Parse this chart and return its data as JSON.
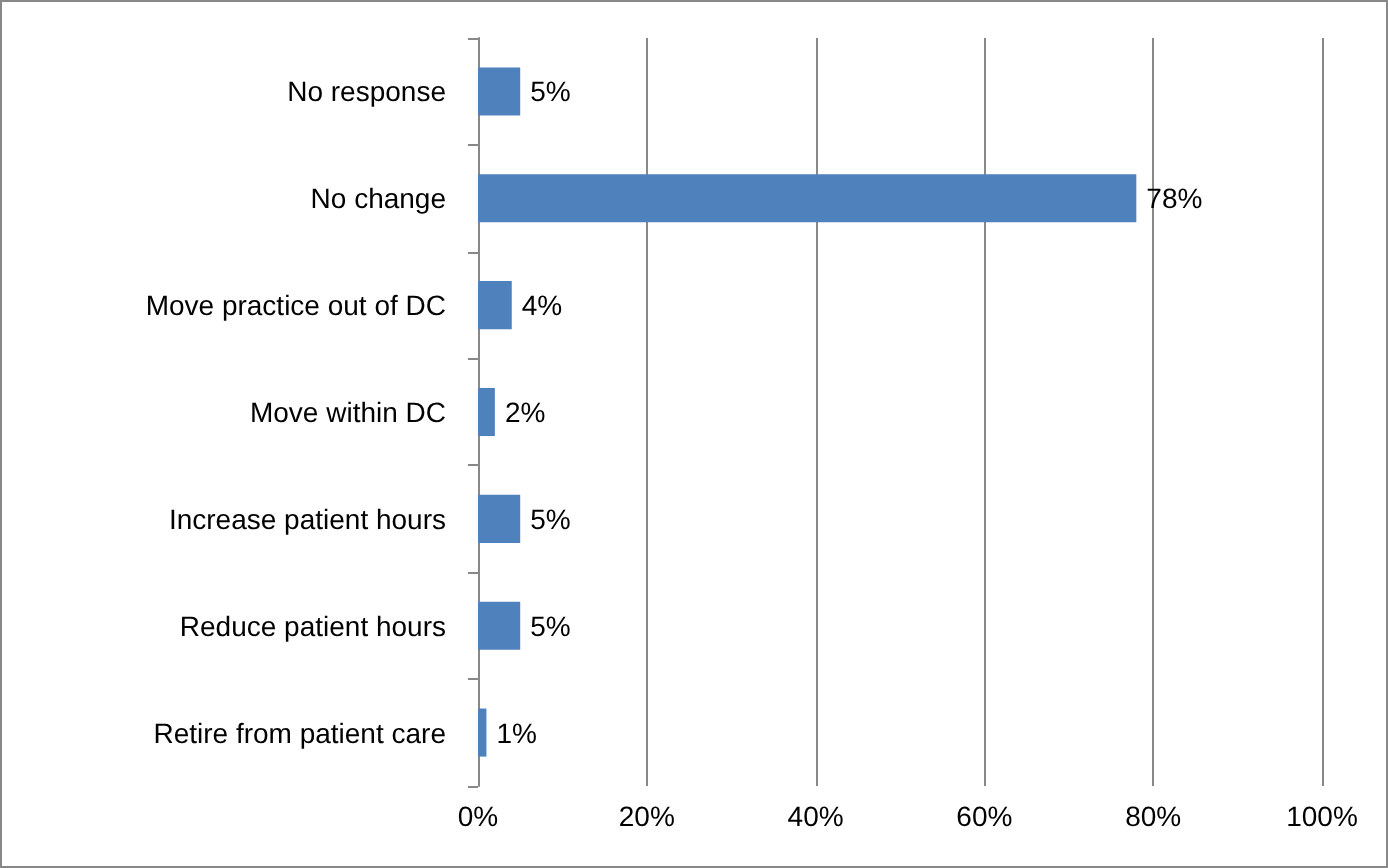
{
  "chart_data": {
    "type": "bar",
    "orientation": "horizontal",
    "categories": [
      "No response",
      "No change",
      "Move practice out of DC",
      "Move within DC",
      "Increase patient hours",
      "Reduce patient hours",
      "Retire from patient care"
    ],
    "values": [
      5,
      78,
      4,
      2,
      5,
      5,
      1
    ],
    "value_labels": [
      "5%",
      "78%",
      "4%",
      "2%",
      "5%",
      "5%",
      "1%"
    ],
    "color": "#4f81bd",
    "xlim": [
      0,
      100
    ],
    "xticks": [
      {
        "value": 0,
        "label": "0%"
      },
      {
        "value": 20,
        "label": "20%"
      },
      {
        "value": 40,
        "label": "40%"
      },
      {
        "value": 60,
        "label": "60%"
      },
      {
        "value": 80,
        "label": "80%"
      },
      {
        "value": 100,
        "label": "100%"
      }
    ],
    "grid": "x"
  }
}
